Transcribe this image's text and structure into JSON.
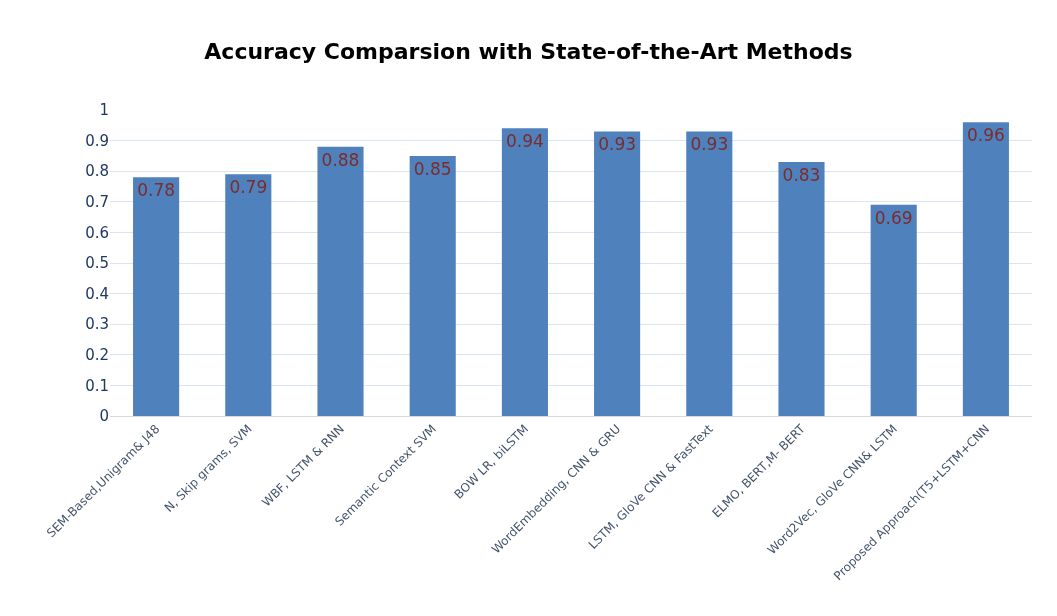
{
  "chart_data": {
    "type": "bar",
    "title": "Accuracy Comparsion with State-of-the-Art Methods",
    "categories": [
      "SEM-Based,Unigram& J48",
      "N, Skip grams, SVM",
      "WBF, LSTM & RNN",
      "Semantic Context SVM",
      "BOW LR, biLSTM",
      "WordEmbedding, CNN & GRU",
      "LSTM, GloVe CNN & FastText",
      "ELMO, BERT,M- BERT",
      "Word2Vec, GloVe CNN& LSTM",
      "Proposed Approach(T5+LSTM+CNN"
    ],
    "values": [
      0.78,
      0.79,
      0.88,
      0.85,
      0.94,
      0.93,
      0.93,
      0.83,
      0.69,
      0.96
    ],
    "color": "#4f81bd",
    "ylim": [
      0,
      1
    ],
    "yticks": [
      0,
      0.1,
      0.2,
      0.3,
      0.4,
      0.5,
      0.6,
      0.7,
      0.8,
      0.9,
      1
    ],
    "grid": "y",
    "data_labels": true
  }
}
